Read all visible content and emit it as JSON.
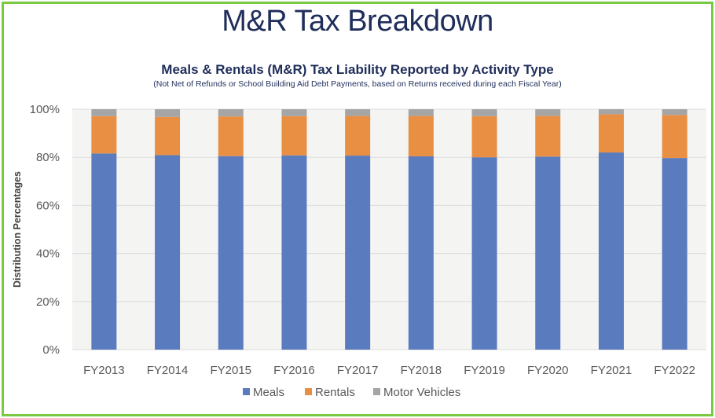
{
  "page_title": "M&R Tax Breakdown",
  "colors": {
    "frame_border": "#7ac943",
    "title_text": "#1f2d5a",
    "plot_background": "#f4f4f2",
    "gridline": "#dcdcdc"
  },
  "chart_data": {
    "type": "bar",
    "stacked": true,
    "percent_stacked": true,
    "title": "Meals & Rentals (M&R) Tax Liability Reported by Activity Type",
    "subtitle": "(Not Net of Refunds or School Building Aid Debt Payments, based on Returns received during each Fiscal Year)",
    "xlabel": "",
    "ylabel": "Distribution Percentages",
    "ylim": [
      0,
      100
    ],
    "yticks": [
      0,
      20,
      40,
      60,
      80,
      100
    ],
    "ytick_labels": [
      "0%",
      "20%",
      "40%",
      "60%",
      "80%",
      "100%"
    ],
    "grid": true,
    "legend_position": "bottom",
    "categories": [
      "FY2013",
      "FY2014",
      "FY2015",
      "FY2016",
      "FY2017",
      "FY2018",
      "FY2019",
      "FY2020",
      "FY2021",
      "FY2022"
    ],
    "series": [
      {
        "name": "Meals",
        "color": "#5b7bbf",
        "values": [
          81.6,
          80.9,
          80.5,
          80.8,
          80.7,
          80.4,
          80.0,
          80.3,
          82.0,
          79.7
        ]
      },
      {
        "name": "Rentals",
        "color": "#e98f43",
        "values": [
          15.5,
          15.9,
          16.5,
          16.3,
          16.5,
          16.8,
          17.1,
          16.9,
          15.9,
          17.9
        ]
      },
      {
        "name": "Motor Vehicles",
        "color": "#a5a5a5",
        "values": [
          2.9,
          3.2,
          3.0,
          2.9,
          2.8,
          2.8,
          2.9,
          2.8,
          2.1,
          2.4
        ]
      }
    ]
  }
}
